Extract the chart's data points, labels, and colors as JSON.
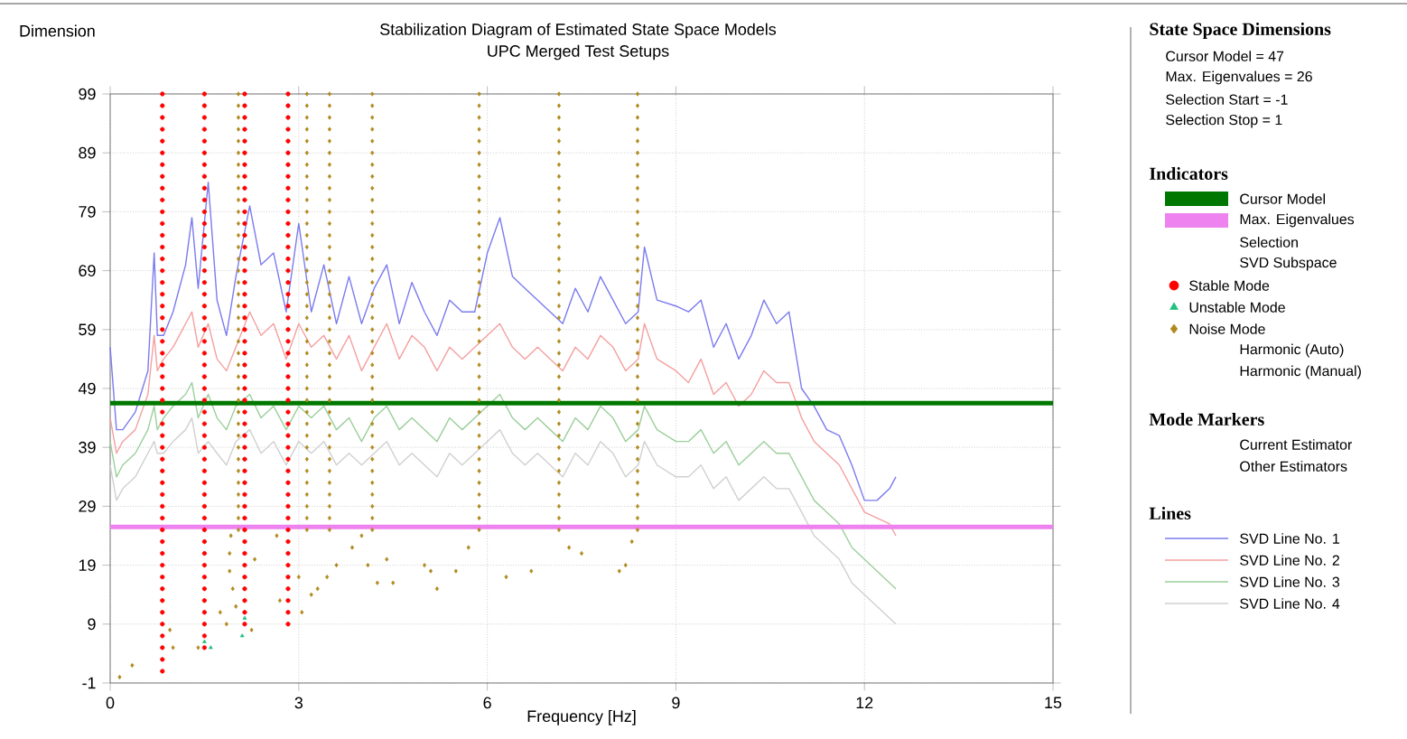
{
  "chart_data": {
    "type": "line",
    "title": "Stabilization Diagram of Estimated State Space Models",
    "subtitle": "UPC Merged Test Setups",
    "xlabel": "Frequency [Hz]",
    "ylabel": "Dimension",
    "xlim": [
      0,
      15
    ],
    "xticks": [
      0,
      3,
      6,
      9,
      12,
      15
    ],
    "ylim": [
      -1,
      99
    ],
    "yticks": [
      -1,
      9,
      19,
      29,
      39,
      49,
      59,
      69,
      79,
      89,
      99
    ],
    "grid": true,
    "legend": "right",
    "annotations": [
      "State Space Dimensions",
      "Cursor Model = 47",
      "Max. Eigenvalues = 26",
      "Selection Start = -1",
      "Selection Stop = 1",
      "Indicators",
      "Selection",
      "SVD Subspace",
      "Harmonic (Auto)",
      "Harmonic (Manual)",
      "Mode Markers",
      "Current Estimator",
      "Other Estimators",
      "Lines"
    ],
    "ref_lines": [
      {
        "axis": "y",
        "value": 46.5,
        "label": "Cursor Model",
        "color": "#007800"
      },
      {
        "axis": "y",
        "value": 25.5,
        "label": "Max. Eigenvalues",
        "color": "#ee82ee"
      }
    ],
    "x": [
      0,
      0.1,
      0.2,
      0.4,
      0.6,
      0.7,
      0.75,
      0.85,
      1.0,
      1.2,
      1.3,
      1.4,
      1.56,
      1.7,
      1.85,
      2.0,
      2.22,
      2.4,
      2.6,
      2.8,
      3.0,
      3.2,
      3.4,
      3.6,
      3.8,
      4.0,
      4.2,
      4.4,
      4.6,
      4.8,
      5.0,
      5.2,
      5.4,
      5.6,
      5.8,
      6.0,
      6.2,
      6.4,
      6.6,
      6.8,
      7.0,
      7.2,
      7.4,
      7.6,
      7.8,
      8.0,
      8.2,
      8.4,
      8.5,
      8.7,
      9.0,
      9.2,
      9.4,
      9.6,
      9.8,
      10.0,
      10.2,
      10.4,
      10.6,
      10.8,
      11.0,
      11.2,
      11.4,
      11.6,
      11.8,
      12.0,
      12.2,
      12.4,
      12.5
    ],
    "series": [
      {
        "name": "SVD Line No. 1",
        "color": "#7b7bef",
        "marker": "none",
        "values": [
          56,
          42,
          42,
          45,
          52,
          72,
          58,
          58,
          62,
          70,
          78,
          66,
          84,
          64,
          58,
          68,
          80,
          70,
          72,
          62,
          77,
          62,
          70,
          60,
          68,
          60,
          66,
          70,
          60,
          67,
          62,
          58,
          64,
          62,
          62,
          72,
          78,
          68,
          66,
          64,
          62,
          60,
          66,
          62,
          68,
          64,
          60,
          62,
          73,
          64,
          63,
          62,
          64,
          56,
          60,
          54,
          58,
          64,
          60,
          62,
          49,
          46,
          42,
          41,
          36,
          30,
          30,
          32,
          34
        ]
      },
      {
        "name": "SVD Line No. 2",
        "color": "#f4a0a0",
        "marker": "none",
        "values": [
          44,
          38,
          40,
          42,
          48,
          58,
          52,
          54,
          56,
          60,
          62,
          56,
          60,
          54,
          52,
          56,
          62,
          58,
          60,
          54,
          60,
          56,
          58,
          54,
          58,
          52,
          56,
          60,
          54,
          58,
          56,
          52,
          56,
          54,
          56,
          58,
          60,
          56,
          54,
          56,
          54,
          52,
          56,
          54,
          58,
          56,
          52,
          54,
          60,
          54,
          52,
          50,
          54,
          48,
          50,
          46,
          48,
          52,
          50,
          50,
          44,
          40,
          38,
          36,
          32,
          28,
          27,
          26,
          24
        ]
      },
      {
        "name": "SVD Line No. 3",
        "color": "#9ccf9c",
        "marker": "none",
        "values": [
          40,
          34,
          36,
          38,
          42,
          46,
          42,
          44,
          46,
          48,
          50,
          44,
          48,
          44,
          42,
          46,
          48,
          44,
          46,
          42,
          46,
          44,
          46,
          42,
          44,
          40,
          44,
          46,
          42,
          44,
          42,
          40,
          44,
          42,
          44,
          46,
          48,
          44,
          42,
          44,
          42,
          40,
          44,
          42,
          46,
          44,
          40,
          42,
          46,
          42,
          40,
          40,
          42,
          38,
          40,
          36,
          38,
          40,
          38,
          38,
          34,
          30,
          28,
          26,
          22,
          20,
          18,
          16,
          15
        ]
      },
      {
        "name": "SVD Line No. 4",
        "color": "#d0d0d0",
        "marker": "none",
        "values": [
          36,
          30,
          32,
          34,
          38,
          40,
          38,
          38,
          40,
          42,
          44,
          38,
          40,
          38,
          36,
          40,
          42,
          38,
          40,
          36,
          40,
          38,
          40,
          36,
          38,
          36,
          38,
          40,
          36,
          38,
          36,
          34,
          38,
          36,
          38,
          40,
          42,
          38,
          36,
          38,
          36,
          34,
          38,
          36,
          40,
          38,
          34,
          36,
          40,
          36,
          34,
          34,
          36,
          32,
          34,
          30,
          32,
          34,
          32,
          32,
          28,
          24,
          22,
          20,
          16,
          14,
          12,
          10,
          9
        ]
      },
      {
        "name": "Stable Mode",
        "type": "scatter",
        "marker": "circle",
        "color": "#ff0000",
        "x": [
          0.83,
          0.83,
          0.83,
          0.83,
          0.83,
          0.83,
          0.83,
          0.83,
          0.83,
          0.83,
          0.83,
          0.83,
          0.83,
          0.83,
          0.83,
          0.83,
          0.83,
          0.83,
          0.83,
          0.83,
          0.83,
          0.83,
          0.83,
          0.83,
          0.83,
          0.83,
          0.83,
          0.83,
          0.83,
          0.83,
          0.83,
          0.83,
          0.83,
          0.83,
          0.83,
          0.83,
          0.83,
          0.83,
          0.83,
          0.83,
          0.83,
          0.83,
          0.83,
          0.83,
          0.83,
          0.83,
          0.83,
          0.83,
          0.83,
          0.83,
          1.5,
          1.5,
          1.5,
          1.5,
          1.5,
          1.5,
          1.5,
          1.5,
          1.5,
          1.5,
          1.5,
          1.5,
          1.5,
          1.5,
          1.5,
          1.5,
          1.5,
          1.5,
          1.5,
          1.5,
          1.5,
          1.5,
          1.5,
          1.5,
          1.5,
          1.5,
          1.5,
          1.5,
          1.5,
          1.5,
          1.5,
          1.5,
          1.5,
          1.5,
          1.5,
          1.5,
          1.5,
          1.5,
          1.5,
          1.5,
          1.5,
          1.5,
          1.5,
          1.5,
          1.5,
          1.5,
          1.5,
          1.5,
          2.14,
          2.14,
          2.14,
          2.14,
          2.14,
          2.14,
          2.14,
          2.14,
          2.14,
          2.14,
          2.14,
          2.14,
          2.14,
          2.14,
          2.14,
          2.14,
          2.14,
          2.14,
          2.14,
          2.14,
          2.14,
          2.14,
          2.14,
          2.14,
          2.14,
          2.14,
          2.14,
          2.14,
          2.14,
          2.14,
          2.14,
          2.14,
          2.14,
          2.14,
          2.14,
          2.14,
          2.14,
          2.14,
          2.14,
          2.14,
          2.14,
          2.14,
          2.14,
          2.14,
          2.14,
          2.14,
          2.83,
          2.83,
          2.83,
          2.83,
          2.83,
          2.83,
          2.83,
          2.83,
          2.83,
          2.83,
          2.83,
          2.83,
          2.83,
          2.83,
          2.83,
          2.83,
          2.83,
          2.83,
          2.83,
          2.83,
          2.83,
          2.83,
          2.83,
          2.83,
          2.83,
          2.83,
          2.83,
          2.83,
          2.83,
          2.83,
          2.83,
          2.83,
          2.83,
          2.83,
          2.83,
          2.83,
          2.83,
          2.83,
          2.83,
          2.83,
          2.83,
          2.83,
          2.83,
          2.83,
          2.83,
          2.83
        ],
        "values": [
          1,
          3,
          5,
          7,
          9,
          11,
          13,
          15,
          17,
          19,
          21,
          23,
          25,
          27,
          29,
          31,
          33,
          35,
          37,
          39,
          41,
          43,
          45,
          47,
          49,
          51,
          53,
          55,
          57,
          59,
          61,
          63,
          65,
          67,
          69,
          71,
          73,
          75,
          77,
          79,
          81,
          83,
          85,
          87,
          89,
          91,
          93,
          95,
          97,
          99,
          5,
          7,
          9,
          11,
          13,
          15,
          17,
          19,
          21,
          23,
          25,
          27,
          29,
          31,
          33,
          35,
          37,
          39,
          41,
          43,
          45,
          47,
          49,
          51,
          53,
          55,
          57,
          59,
          61,
          63,
          65,
          67,
          69,
          71,
          73,
          75,
          77,
          79,
          81,
          83,
          85,
          87,
          89,
          91,
          93,
          95,
          97,
          99,
          9,
          11,
          13,
          15,
          17,
          19,
          21,
          23,
          25,
          27,
          29,
          31,
          33,
          35,
          37,
          39,
          41,
          43,
          45,
          47,
          49,
          51,
          53,
          55,
          57,
          59,
          61,
          63,
          65,
          67,
          69,
          71,
          73,
          75,
          77,
          79,
          81,
          83,
          85,
          87,
          89,
          91,
          93,
          95,
          97,
          99,
          9,
          11,
          13,
          15,
          17,
          19,
          21,
          23,
          25,
          27,
          29,
          31,
          33,
          35,
          37,
          39,
          41,
          43,
          45,
          47,
          49,
          51,
          53,
          55,
          57,
          59,
          61,
          63,
          65,
          67,
          69,
          71,
          73,
          75,
          77,
          79,
          81,
          83,
          85,
          87,
          89,
          91,
          93,
          95,
          97,
          99
        ]
      },
      {
        "name": "Unstable Mode",
        "type": "scatter",
        "marker": "triangle",
        "color": "#20c080",
        "x": [
          1.5,
          1.6,
          2.1,
          2.14
        ],
        "values": [
          6,
          5,
          7,
          10
        ]
      },
      {
        "name": "Noise Mode",
        "type": "scatter",
        "marker": "diamond",
        "color": "#b08a20",
        "x": [
          2.04,
          2.04,
          2.04,
          2.04,
          2.04,
          2.04,
          2.04,
          2.04,
          2.04,
          2.04,
          2.04,
          2.04,
          2.04,
          2.04,
          2.04,
          2.04,
          2.04,
          2.04,
          2.04,
          2.04,
          2.04,
          2.04,
          2.04,
          2.04,
          2.04,
          2.04,
          2.04,
          2.04,
          2.04,
          2.04,
          2.04,
          2.04,
          2.04,
          2.04,
          2.04,
          2.04,
          2.04,
          2.04,
          3.13,
          3.13,
          3.13,
          3.13,
          3.13,
          3.13,
          3.13,
          3.13,
          3.13,
          3.13,
          3.13,
          3.13,
          3.13,
          3.13,
          3.13,
          3.13,
          3.13,
          3.13,
          3.13,
          3.13,
          3.13,
          3.13,
          3.13,
          3.13,
          3.13,
          3.13,
          3.13,
          3.13,
          3.13,
          3.13,
          3.13,
          3.13,
          3.13,
          3.13,
          3.13,
          3.13,
          3.13,
          3.13,
          3.49,
          3.49,
          3.49,
          3.49,
          3.49,
          3.49,
          3.49,
          3.49,
          3.49,
          3.49,
          3.49,
          3.49,
          3.49,
          3.49,
          3.49,
          3.49,
          3.49,
          3.49,
          3.49,
          3.49,
          3.49,
          3.49,
          3.49,
          3.49,
          3.49,
          3.49,
          3.49,
          3.49,
          3.49,
          3.49,
          3.49,
          3.49,
          3.49,
          3.49,
          3.49,
          3.49,
          3.49,
          3.49,
          4.17,
          4.17,
          4.17,
          4.17,
          4.17,
          4.17,
          4.17,
          4.17,
          4.17,
          4.17,
          4.17,
          4.17,
          4.17,
          4.17,
          4.17,
          4.17,
          4.17,
          4.17,
          4.17,
          4.17,
          4.17,
          4.17,
          4.17,
          4.17,
          4.17,
          4.17,
          4.17,
          4.17,
          4.17,
          4.17,
          4.17,
          4.17,
          4.17,
          4.17,
          4.17,
          4.17,
          4.17,
          4.17,
          5.87,
          5.87,
          5.87,
          5.87,
          5.87,
          5.87,
          5.87,
          5.87,
          5.87,
          5.87,
          5.87,
          5.87,
          5.87,
          5.87,
          5.87,
          5.87,
          5.87,
          5.87,
          5.87,
          5.87,
          5.87,
          5.87,
          5.87,
          5.87,
          5.87,
          5.87,
          5.87,
          5.87,
          5.87,
          5.87,
          5.87,
          5.87,
          5.87,
          5.87,
          5.87,
          5.87,
          5.87,
          5.87,
          7.14,
          7.14,
          7.14,
          7.14,
          7.14,
          7.14,
          7.14,
          7.14,
          7.14,
          7.14,
          7.14,
          7.14,
          7.14,
          7.14,
          7.14,
          7.14,
          7.14,
          7.14,
          7.14,
          7.14,
          7.14,
          7.14,
          7.14,
          7.14,
          7.14,
          7.14,
          7.14,
          7.14,
          7.14,
          7.14,
          7.14,
          7.14,
          7.14,
          7.14,
          7.14,
          7.14,
          7.14,
          7.14,
          8.39,
          8.39,
          8.39,
          8.39,
          8.39,
          8.39,
          8.39,
          8.39,
          8.39,
          8.39,
          8.39,
          8.39,
          8.39,
          8.39,
          8.39,
          8.39,
          8.39,
          8.39,
          8.39,
          8.39,
          8.39,
          8.39,
          8.39,
          8.39,
          8.39,
          8.39,
          8.39,
          8.39,
          8.39,
          8.39,
          8.39,
          8.39,
          8.39,
          8.39,
          8.39,
          8.39,
          8.39,
          8.39,
          0.15,
          0.35,
          0.95,
          1.0,
          1.4,
          1.75,
          1.85,
          1.92,
          1.9,
          1.9,
          1.95,
          2.0,
          2.25,
          2.3,
          2.65,
          2.7,
          3.0,
          3.05,
          3.2,
          3.3,
          3.45,
          3.6,
          3.85,
          4.0,
          4.1,
          4.25,
          4.4,
          4.5,
          5.0,
          5.1,
          5.2,
          5.5,
          5.7,
          6.3,
          6.7,
          7.3,
          7.5,
          8.1,
          8.2,
          8.3
        ],
        "values": [
          25,
          27,
          29,
          31,
          33,
          35,
          37,
          39,
          41,
          43,
          45,
          47,
          49,
          51,
          53,
          55,
          57,
          59,
          61,
          63,
          65,
          67,
          69,
          71,
          73,
          75,
          77,
          79,
          81,
          83,
          85,
          87,
          89,
          91,
          93,
          95,
          97,
          99,
          25,
          27,
          29,
          31,
          33,
          35,
          37,
          39,
          41,
          43,
          45,
          47,
          49,
          51,
          53,
          55,
          57,
          59,
          61,
          63,
          65,
          67,
          69,
          71,
          73,
          75,
          77,
          79,
          81,
          83,
          85,
          87,
          89,
          91,
          93,
          95,
          97,
          99,
          25,
          27,
          29,
          31,
          33,
          35,
          37,
          39,
          41,
          43,
          45,
          47,
          49,
          51,
          53,
          55,
          57,
          59,
          61,
          63,
          65,
          67,
          69,
          71,
          73,
          75,
          77,
          79,
          81,
          83,
          85,
          87,
          89,
          91,
          93,
          95,
          97,
          99,
          25,
          27,
          29,
          31,
          33,
          35,
          37,
          39,
          41,
          43,
          45,
          47,
          49,
          51,
          53,
          55,
          57,
          59,
          61,
          63,
          65,
          67,
          69,
          71,
          73,
          75,
          77,
          79,
          81,
          83,
          85,
          87,
          89,
          91,
          93,
          95,
          97,
          99,
          25,
          27,
          29,
          31,
          33,
          35,
          37,
          39,
          41,
          43,
          45,
          47,
          49,
          51,
          53,
          55,
          57,
          59,
          61,
          63,
          65,
          67,
          69,
          71,
          73,
          75,
          77,
          79,
          81,
          83,
          85,
          87,
          89,
          91,
          93,
          95,
          97,
          99,
          25,
          27,
          29,
          31,
          33,
          35,
          37,
          39,
          41,
          43,
          45,
          47,
          49,
          51,
          53,
          55,
          57,
          59,
          61,
          63,
          65,
          67,
          69,
          71,
          73,
          75,
          77,
          79,
          81,
          83,
          85,
          87,
          89,
          91,
          93,
          95,
          97,
          99,
          25,
          27,
          29,
          31,
          33,
          35,
          37,
          39,
          41,
          43,
          45,
          47,
          49,
          51,
          53,
          55,
          57,
          59,
          61,
          63,
          65,
          67,
          69,
          71,
          73,
          75,
          77,
          79,
          81,
          83,
          85,
          87,
          89,
          91,
          93,
          95,
          97,
          99,
          0,
          2,
          8,
          5,
          5,
          11,
          9,
          24,
          21,
          18,
          15,
          12,
          8,
          20,
          24,
          13,
          17,
          11,
          14,
          15,
          17,
          19,
          22,
          24,
          19,
          16,
          20,
          16,
          19,
          18,
          15,
          18,
          22,
          17,
          18,
          22,
          21,
          18,
          19,
          23
        ]
      }
    ]
  }
}
